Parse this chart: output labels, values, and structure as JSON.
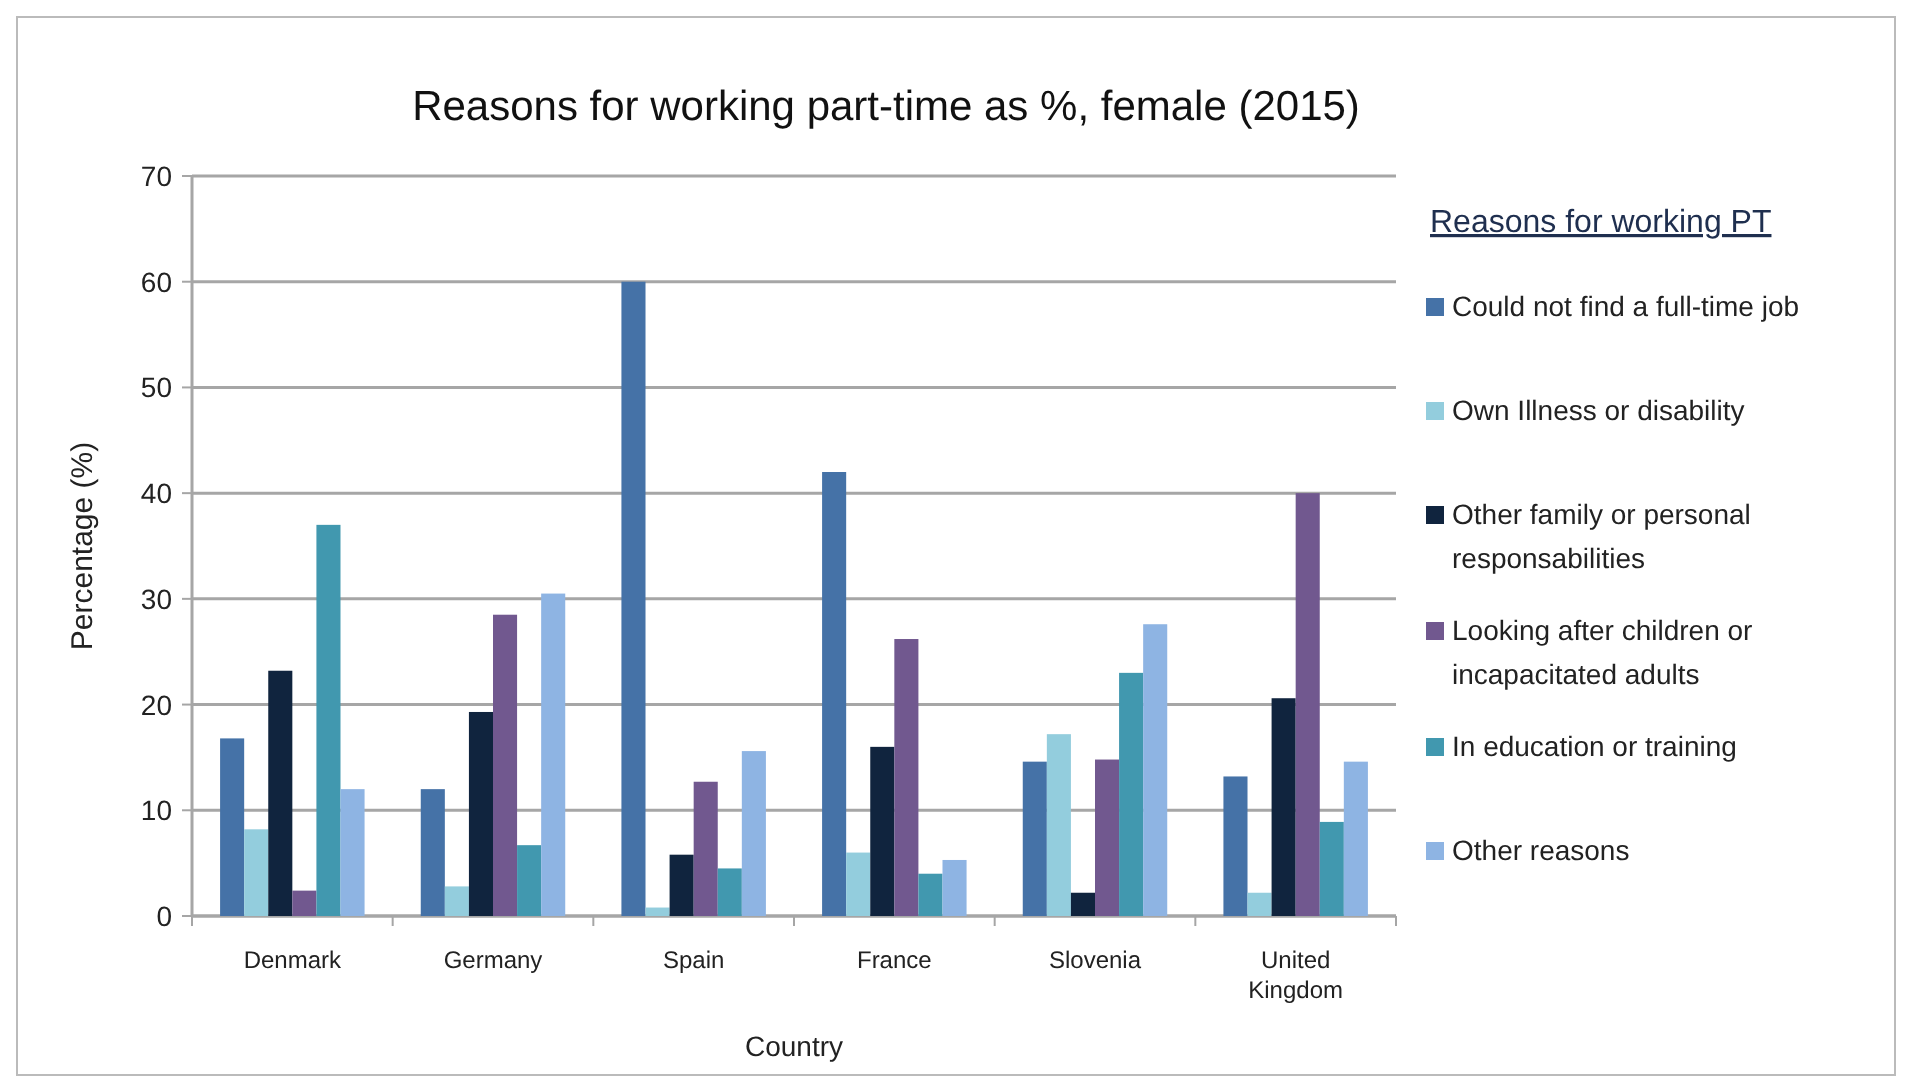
{
  "chart_data": {
    "type": "bar",
    "title": "Reasons for working part-time as %, female (2015)",
    "xlabel": "Country",
    "ylabel": "Percentage (%)",
    "legend_title": "Reasons for working PT",
    "categories": [
      "Denmark",
      "Germany",
      "Spain",
      "France",
      "Slovenia",
      "United Kingdom"
    ],
    "series": [
      {
        "name": "Could not find a full-time job",
        "color": "#4572a7",
        "values": [
          16.8,
          12,
          60,
          42,
          14.6,
          13.2
        ]
      },
      {
        "name": "Own Illness or disability",
        "color": "#93cddd",
        "values": [
          8.2,
          2.8,
          0.8,
          6,
          17.2,
          2.2
        ]
      },
      {
        "name": "Other family or personal responsabilities",
        "color": "#10243e",
        "values": [
          23.2,
          19.3,
          5.8,
          16,
          2.2,
          20.6
        ]
      },
      {
        "name": "Looking after children or incapacitated adults",
        "color": "#71588f",
        "values": [
          2.4,
          28.5,
          12.7,
          26.2,
          14.8,
          40
        ]
      },
      {
        "name": "In education or training",
        "color": "#4198af",
        "values": [
          37,
          6.7,
          4.5,
          4,
          23,
          8.9
        ]
      },
      {
        "name": "Other reasons",
        "color": "#8eb4e3",
        "values": [
          12,
          30.5,
          15.6,
          5.3,
          27.6,
          14.6
        ]
      }
    ],
    "ylim": [
      0,
      70
    ],
    "yticks": [
      0,
      10,
      20,
      30,
      40,
      50,
      60,
      70
    ],
    "grid": "y",
    "legend": "right"
  }
}
